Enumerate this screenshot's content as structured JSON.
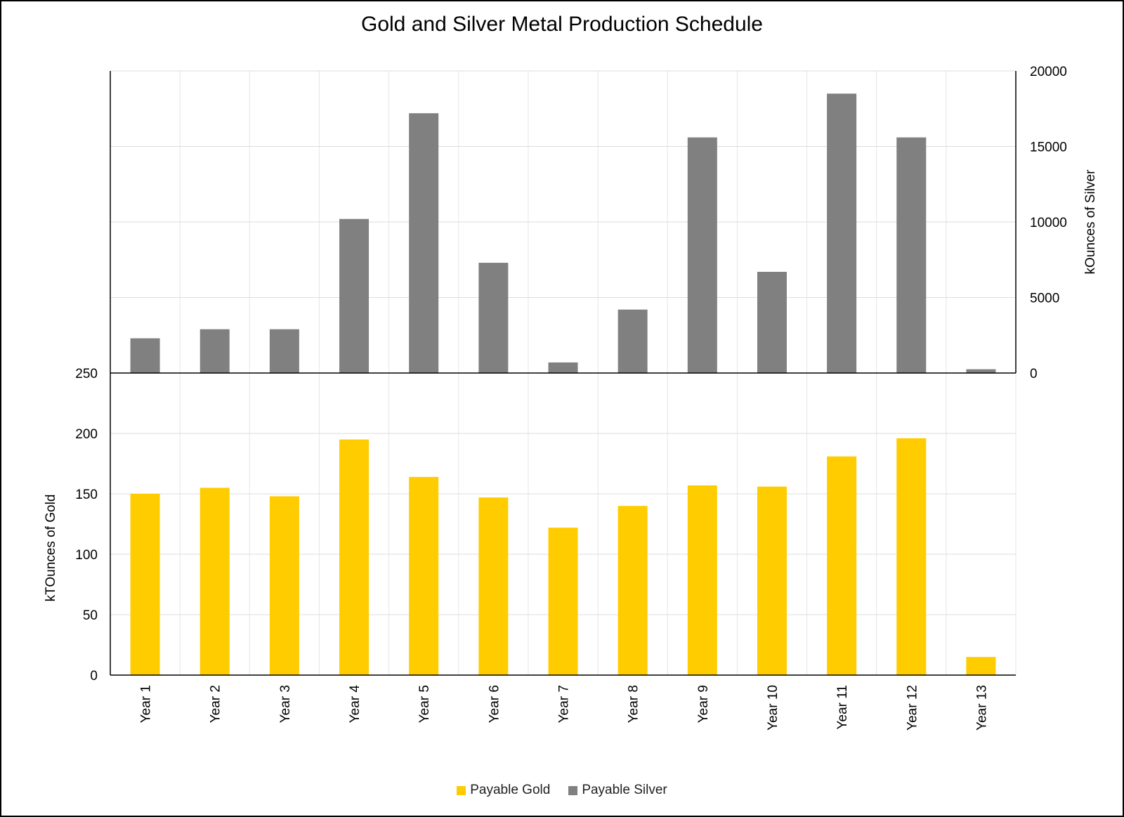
{
  "chart_data": {
    "type": "bar",
    "title": "Gold and Silver Metal Production Schedule",
    "categories": [
      "Year 1",
      "Year 2",
      "Year 3",
      "Year 4",
      "Year 5",
      "Year 6",
      "Year 7",
      "Year 8",
      "Year 9",
      "Year 10",
      "Year 11",
      "Year 12",
      "Year 13"
    ],
    "series": [
      {
        "name": "Payable Silver",
        "color": "#808080",
        "axis": "right",
        "ylabel": "kOunces of Silver",
        "ylim": [
          0,
          20000
        ],
        "ticks": [
          "0",
          "5000",
          "10000",
          "15000",
          "20000"
        ],
        "values": [
          2300,
          2900,
          2900,
          10200,
          17200,
          7300,
          700,
          4200,
          15600,
          6700,
          18500,
          15600,
          250
        ]
      },
      {
        "name": "Payable Gold",
        "color": "#FFCC00",
        "axis": "left",
        "ylabel": "kTOunces of  Gold",
        "ylim": [
          0,
          250
        ],
        "ticks": [
          "0",
          "50",
          "100",
          "150",
          "200",
          "250"
        ],
        "values": [
          150,
          155,
          148,
          195,
          164,
          147,
          122,
          140,
          157,
          156,
          181,
          196,
          15
        ]
      }
    ],
    "legend": [
      "Payable Gold",
      "Payable Silver"
    ],
    "legend_position": "bottom-center",
    "grid": true
  }
}
